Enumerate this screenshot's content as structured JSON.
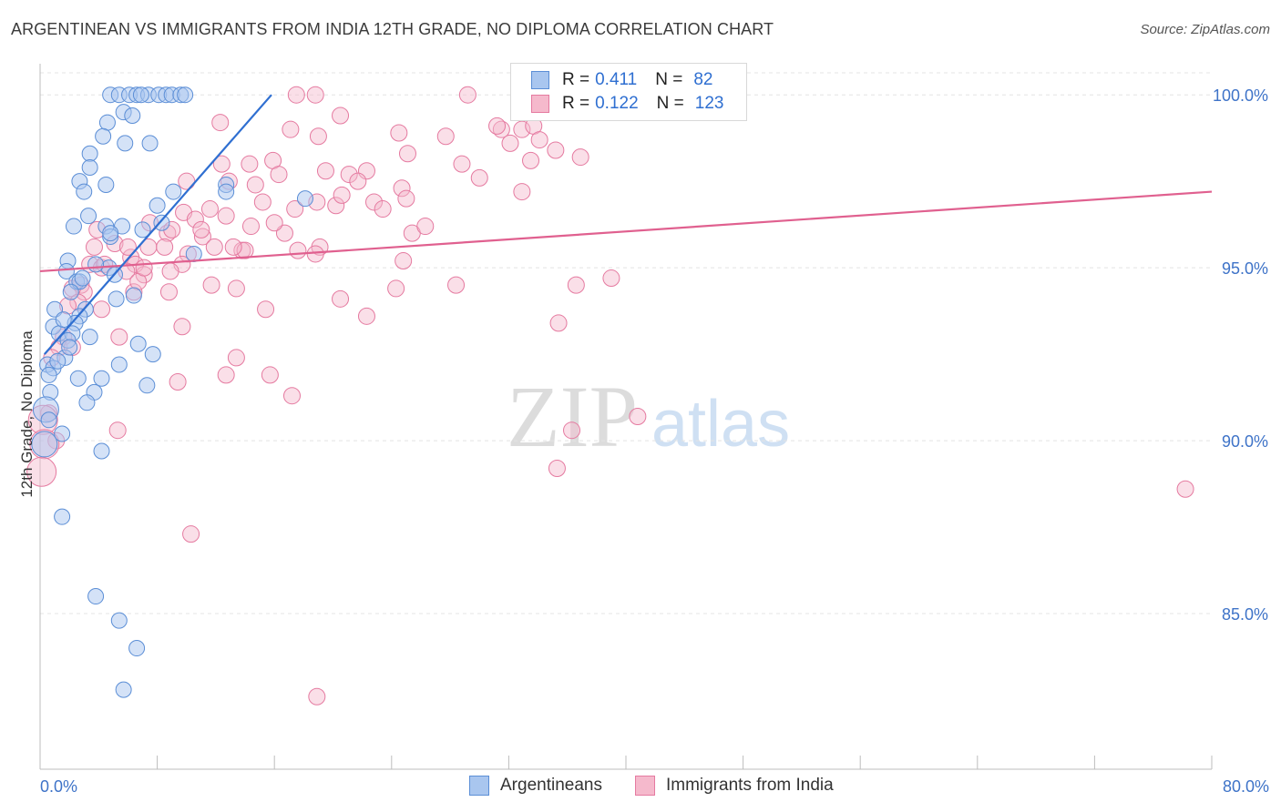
{
  "title": "ARGENTINEAN VS IMMIGRANTS FROM INDIA 12TH GRADE, NO DIPLOMA CORRELATION CHART",
  "source": "Source: ZipAtlas.com",
  "watermark": {
    "zip": "ZIP",
    "atlas": "atlas"
  },
  "legend": {
    "rows": [
      {
        "r_label": "R =",
        "r_value": "0.411",
        "n_label": "N =",
        "n_value": "82"
      },
      {
        "r_label": "R =",
        "r_value": "0.122",
        "n_label": "N =",
        "n_value": "123"
      }
    ]
  },
  "colors": {
    "blue_fill": "#a9c6ef",
    "blue_stroke": "#5b8ed6",
    "blue_line": "#2f6fd1",
    "pink_fill": "#f5b9cc",
    "pink_stroke": "#e57aa0",
    "pink_line": "#e0608f",
    "tick_label": "#3e73c8",
    "grid": "#e4e4e4"
  },
  "chart_data": {
    "type": "scatter",
    "title": "ARGENTINEAN VS IMMIGRANTS FROM INDIA 12TH GRADE, NO DIPLOMA CORRELATION CHART",
    "xlabel": "",
    "ylabel": "12th Grade, No Diploma",
    "xlim": [
      0,
      80
    ],
    "ylim": [
      80.5,
      100.9
    ],
    "x_tick_labels": [
      "0.0%",
      "80.0%"
    ],
    "y_ticks": [
      85,
      90,
      95,
      100
    ],
    "y_tick_labels": [
      "85.0%",
      "90.0%",
      "95.0%",
      "100.0%"
    ],
    "series": [
      {
        "name": "Argentineans",
        "r": 0.411,
        "n": 82,
        "trend": {
          "x": [
            0.3,
            15.8
          ],
          "y": [
            92.5,
            100.0
          ]
        },
        "points": [
          [
            4.8,
            100
          ],
          [
            5.4,
            100
          ],
          [
            6.1,
            100
          ],
          [
            6.6,
            100
          ],
          [
            7.4,
            100
          ],
          [
            8.1,
            100
          ],
          [
            8.6,
            100
          ],
          [
            9.0,
            100
          ],
          [
            9.6,
            100
          ],
          [
            9.9,
            100
          ],
          [
            6.9,
            100
          ],
          [
            5.7,
            99.5
          ],
          [
            6.3,
            99.4
          ],
          [
            4.6,
            99.2
          ],
          [
            4.3,
            98.8
          ],
          [
            5.8,
            98.6
          ],
          [
            7.5,
            98.6
          ],
          [
            3.4,
            98.3
          ],
          [
            3.4,
            97.9
          ],
          [
            2.7,
            97.5
          ],
          [
            4.5,
            97.4
          ],
          [
            3.0,
            97.2
          ],
          [
            9.1,
            97.2
          ],
          [
            12.7,
            97.4
          ],
          [
            12.7,
            97.2
          ],
          [
            18.1,
            97.0
          ],
          [
            8.0,
            96.8
          ],
          [
            3.3,
            96.5
          ],
          [
            2.3,
            96.2
          ],
          [
            4.5,
            96.2
          ],
          [
            5.6,
            96.2
          ],
          [
            7.0,
            96.1
          ],
          [
            4.8,
            95.9
          ],
          [
            10.5,
            95.4
          ],
          [
            1.9,
            95.2
          ],
          [
            1.8,
            94.9
          ],
          [
            4.7,
            95.0
          ],
          [
            5.1,
            94.8
          ],
          [
            2.5,
            94.6
          ],
          [
            2.7,
            94.6
          ],
          [
            2.1,
            94.3
          ],
          [
            6.4,
            94.2
          ],
          [
            5.2,
            94.1
          ],
          [
            3.1,
            93.8
          ],
          [
            1.0,
            93.8
          ],
          [
            2.7,
            93.6
          ],
          [
            2.4,
            93.4
          ],
          [
            0.9,
            93.3
          ],
          [
            1.3,
            93.1
          ],
          [
            2.2,
            93.1
          ],
          [
            3.4,
            93.0
          ],
          [
            1.9,
            92.9
          ],
          [
            6.7,
            92.8
          ],
          [
            7.7,
            92.5
          ],
          [
            1.7,
            92.4
          ],
          [
            0.5,
            92.2
          ],
          [
            0.9,
            92.1
          ],
          [
            5.4,
            92.2
          ],
          [
            0.6,
            91.9
          ],
          [
            2.6,
            91.8
          ],
          [
            4.2,
            91.8
          ],
          [
            7.3,
            91.6
          ],
          [
            0.7,
            91.4
          ],
          [
            3.7,
            91.4
          ],
          [
            3.2,
            91.1
          ],
          [
            0.4,
            90.9
          ],
          [
            0.6,
            90.6
          ],
          [
            1.5,
            90.2
          ],
          [
            0.3,
            89.9
          ],
          [
            4.2,
            89.7
          ],
          [
            1.5,
            87.8
          ],
          [
            3.8,
            85.5
          ],
          [
            5.4,
            84.8
          ],
          [
            6.6,
            84.0
          ],
          [
            5.7,
            82.8
          ],
          [
            4.8,
            96.0
          ],
          [
            3.8,
            95.1
          ],
          [
            2.9,
            94.7
          ],
          [
            1.6,
            93.5
          ],
          [
            8.3,
            96.3
          ],
          [
            2.0,
            92.7
          ],
          [
            1.2,
            92.3
          ]
        ]
      },
      {
        "name": "Immigrants from India",
        "r": 0.122,
        "n": 123,
        "trend": {
          "x": [
            0.0,
            80.0
          ],
          "y": [
            94.9,
            97.2
          ]
        },
        "points": [
          [
            17.5,
            100
          ],
          [
            18.8,
            100
          ],
          [
            29.2,
            100
          ],
          [
            20.5,
            99.4
          ],
          [
            12.3,
            99.2
          ],
          [
            17.1,
            99.0
          ],
          [
            19.0,
            98.8
          ],
          [
            24.5,
            98.9
          ],
          [
            27.7,
            98.8
          ],
          [
            31.5,
            99.0
          ],
          [
            32.9,
            99.0
          ],
          [
            33.7,
            99.1
          ],
          [
            34.1,
            98.7
          ],
          [
            35.2,
            98.4
          ],
          [
            25.1,
            98.3
          ],
          [
            36.9,
            98.2
          ],
          [
            12.4,
            98.0
          ],
          [
            14.3,
            98.0
          ],
          [
            15.9,
            98.1
          ],
          [
            19.5,
            97.8
          ],
          [
            21.1,
            97.7
          ],
          [
            22.3,
            97.8
          ],
          [
            28.8,
            98.0
          ],
          [
            16.3,
            97.7
          ],
          [
            12.9,
            97.5
          ],
          [
            14.7,
            97.4
          ],
          [
            30.0,
            97.6
          ],
          [
            21.7,
            97.5
          ],
          [
            10.0,
            97.5
          ],
          [
            24.7,
            97.3
          ],
          [
            25.0,
            97.0
          ],
          [
            32.9,
            97.2
          ],
          [
            22.8,
            96.9
          ],
          [
            23.4,
            96.7
          ],
          [
            18.9,
            96.9
          ],
          [
            20.2,
            96.8
          ],
          [
            11.6,
            96.7
          ],
          [
            12.7,
            96.5
          ],
          [
            9.8,
            96.6
          ],
          [
            10.6,
            96.4
          ],
          [
            14.4,
            96.2
          ],
          [
            16.7,
            96.0
          ],
          [
            7.5,
            96.3
          ],
          [
            8.7,
            96.0
          ],
          [
            11.1,
            95.9
          ],
          [
            3.7,
            95.6
          ],
          [
            5.1,
            95.7
          ],
          [
            7.4,
            95.6
          ],
          [
            8.5,
            95.6
          ],
          [
            13.8,
            95.5
          ],
          [
            14.0,
            95.5
          ],
          [
            17.6,
            95.5
          ],
          [
            19.1,
            95.6
          ],
          [
            6.2,
            95.3
          ],
          [
            6.5,
            95.1
          ],
          [
            10.1,
            95.4
          ],
          [
            9.7,
            95.1
          ],
          [
            3.4,
            95.1
          ],
          [
            4.2,
            95.0
          ],
          [
            5.9,
            94.9
          ],
          [
            7.1,
            94.8
          ],
          [
            8.9,
            94.9
          ],
          [
            11.7,
            94.5
          ],
          [
            13.4,
            94.4
          ],
          [
            8.8,
            94.3
          ],
          [
            6.4,
            94.3
          ],
          [
            2.8,
            94.5
          ],
          [
            3.0,
            94.3
          ],
          [
            2.2,
            94.4
          ],
          [
            2.6,
            94.0
          ],
          [
            1.9,
            93.9
          ],
          [
            4.2,
            93.8
          ],
          [
            15.4,
            93.8
          ],
          [
            20.5,
            94.1
          ],
          [
            22.3,
            93.6
          ],
          [
            24.3,
            94.4
          ],
          [
            28.4,
            94.5
          ],
          [
            36.6,
            94.5
          ],
          [
            39.0,
            94.7
          ],
          [
            35.4,
            93.4
          ],
          [
            9.7,
            93.3
          ],
          [
            5.4,
            93.0
          ],
          [
            1.6,
            93.0
          ],
          [
            1.3,
            92.7
          ],
          [
            2.2,
            92.7
          ],
          [
            0.8,
            92.4
          ],
          [
            13.4,
            92.4
          ],
          [
            12.7,
            91.9
          ],
          [
            15.7,
            91.9
          ],
          [
            9.4,
            91.7
          ],
          [
            17.2,
            91.3
          ],
          [
            0.6,
            90.8
          ],
          [
            0.2,
            90.6
          ],
          [
            5.3,
            90.3
          ],
          [
            1.1,
            90.0
          ],
          [
            0.3,
            89.9
          ],
          [
            0.1,
            89.1
          ],
          [
            36.3,
            90.3
          ],
          [
            35.3,
            89.2
          ],
          [
            40.8,
            90.7
          ],
          [
            78.2,
            88.6
          ],
          [
            10.3,
            87.3
          ],
          [
            18.9,
            82.6
          ],
          [
            25.4,
            96.0
          ],
          [
            26.3,
            96.2
          ],
          [
            24.8,
            95.2
          ],
          [
            16.0,
            96.3
          ],
          [
            17.4,
            96.7
          ],
          [
            9.0,
            96.1
          ],
          [
            11.9,
            95.6
          ],
          [
            3.9,
            96.1
          ],
          [
            6.0,
            95.6
          ],
          [
            4.4,
            95.1
          ],
          [
            6.7,
            94.6
          ],
          [
            13.2,
            95.6
          ],
          [
            18.8,
            95.4
          ],
          [
            20.6,
            97.1
          ],
          [
            31.2,
            99.1
          ],
          [
            32.1,
            98.6
          ],
          [
            33.5,
            98.1
          ],
          [
            11.0,
            96.1
          ],
          [
            15.2,
            96.9
          ],
          [
            7.1,
            95.0
          ]
        ]
      }
    ]
  },
  "bottom_legend": [
    "Argentineans",
    "Immigrants from India"
  ]
}
